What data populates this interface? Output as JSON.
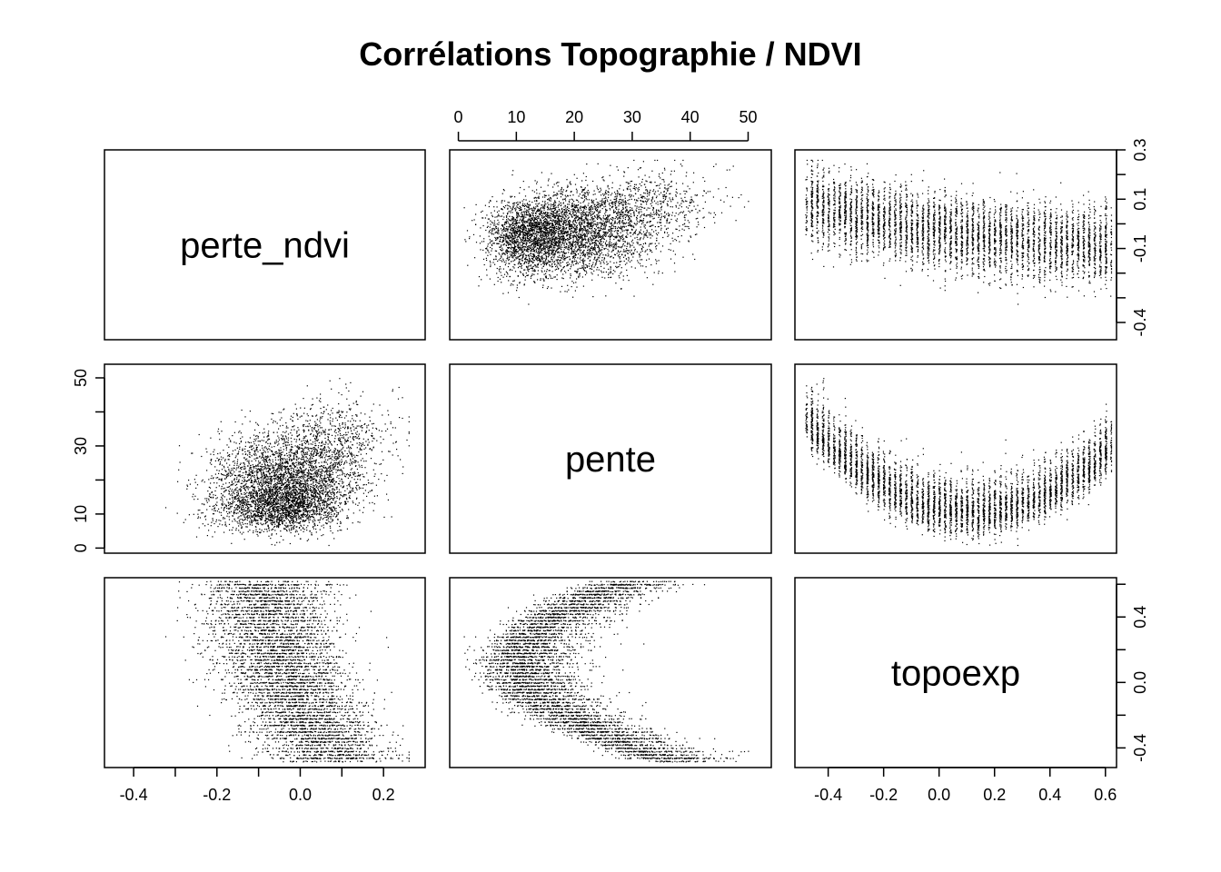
{
  "title": "Corrélations Topographie / NDVI",
  "chart_data": {
    "type": "scatter",
    "subtype": "scatterplot-matrix",
    "title": "Corrélations Topographie / NDVI",
    "variables": [
      "perte_ndvi",
      "pente",
      "topoexp"
    ],
    "ranges": {
      "perte_ndvi": [
        -0.47,
        0.3
      ],
      "pente": [
        -1.5,
        54
      ],
      "topoexp": [
        -0.52,
        0.64
      ]
    },
    "ticks": {
      "perte_ndvi": {
        "bottom": [
          {
            "value": -0.4,
            "label": "-0.4"
          },
          {
            "value": -0.2,
            "label": "-0.2"
          },
          {
            "value": 0.0,
            "label": "0.0"
          },
          {
            "value": 0.2,
            "label": "0.2"
          }
        ],
        "right_all": [
          -0.4,
          -0.3,
          -0.2,
          -0.1,
          0.0,
          0.1,
          0.2,
          0.3
        ],
        "right": [
          {
            "value": 0.3,
            "label": "0.3"
          },
          {
            "value": 0.1,
            "label": "0.1"
          },
          {
            "value": -0.1,
            "label": "-0.1"
          },
          {
            "value": -0.4,
            "label": "-0.4"
          }
        ]
      },
      "pente": {
        "top": [
          {
            "value": 0,
            "label": "0"
          },
          {
            "value": 10,
            "label": "10"
          },
          {
            "value": 20,
            "label": "20"
          },
          {
            "value": 30,
            "label": "30"
          },
          {
            "value": 40,
            "label": "40"
          },
          {
            "value": 50,
            "label": "50"
          }
        ],
        "left_all": [
          0,
          10,
          20,
          30,
          40,
          50
        ],
        "left": [
          {
            "value": 50,
            "label": "50"
          },
          {
            "value": 30,
            "label": "30"
          },
          {
            "value": 10,
            "label": "10"
          },
          {
            "value": 0,
            "label": "0"
          }
        ]
      },
      "topoexp": {
        "bottom": [
          {
            "value": -0.4,
            "label": "-0.4"
          },
          {
            "value": -0.2,
            "label": "-0.2"
          },
          {
            "value": 0.0,
            "label": "0.0"
          },
          {
            "value": 0.2,
            "label": "0.2"
          },
          {
            "value": 0.4,
            "label": "0.4"
          },
          {
            "value": 0.6,
            "label": "0.6"
          }
        ],
        "right_all": [
          -0.4,
          -0.2,
          0.0,
          0.2,
          0.4,
          0.6
        ],
        "right": [
          {
            "value": 0.4,
            "label": "0.4"
          },
          {
            "value": 0.0,
            "label": "0.0"
          },
          {
            "value": -0.4,
            "label": "-0.4"
          }
        ]
      }
    },
    "trends": {
      "perte_ndvi_vs_pente": "weak positive, cloud centred near perte_ndvi -0.1, pente 15-20",
      "perte_ndvi_vs_topoexp": "negative, perte_ndvi decreases as topoexp increases",
      "pente_vs_topoexp": "U-shaped, minimum pente near topoexp 0.1"
    },
    "grid": false,
    "legend": "none"
  }
}
